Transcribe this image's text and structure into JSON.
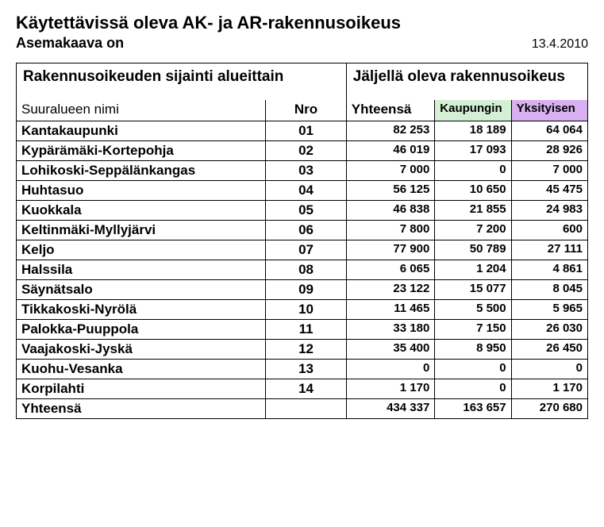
{
  "title": "Käytettävissä oleva AK- ja AR-rakennusoikeus",
  "subtitle": "Asemakaava on",
  "date": "13.4.2010",
  "headers": {
    "location": "Rakennusoikeuden sijainti alueittain",
    "remaining": "Jäljellä oleva rakennusoikeus",
    "area_name": "Suuralueen nimi",
    "nro": "Nro",
    "total": "Yhteensä",
    "city": "Kaupungin",
    "private": "Yksityisen"
  },
  "colors": {
    "city_bg": "#d4f0d4",
    "private_bg": "#d8b0f0"
  },
  "rows": [
    {
      "name": "Kantakaupunki",
      "nro": "01",
      "total": "82 253",
      "city": "18 189",
      "private": "64 064"
    },
    {
      "name": "Kypärämäki-Kortepohja",
      "nro": "02",
      "total": "46 019",
      "city": "17 093",
      "private": "28 926"
    },
    {
      "name": "Lohikoski-Seppälänkangas",
      "nro": "03",
      "total": "7 000",
      "city": "0",
      "private": "7 000"
    },
    {
      "name": "Huhtasuo",
      "nro": "04",
      "total": "56 125",
      "city": "10 650",
      "private": "45 475"
    },
    {
      "name": "Kuokkala",
      "nro": "05",
      "total": "46 838",
      "city": "21 855",
      "private": "24 983"
    },
    {
      "name": "Keltinmäki-Myllyjärvi",
      "nro": "06",
      "total": "7 800",
      "city": "7 200",
      "private": "600"
    },
    {
      "name": "Keljo",
      "nro": "07",
      "total": "77 900",
      "city": "50 789",
      "private": "27 111"
    },
    {
      "name": "Halssila",
      "nro": "08",
      "total": "6 065",
      "city": "1 204",
      "private": "4 861"
    },
    {
      "name": "Säynätsalo",
      "nro": "09",
      "total": "23 122",
      "city": "15 077",
      "private": "8 045"
    },
    {
      "name": "Tikkakoski-Nyrölä",
      "nro": "10",
      "total": "11 465",
      "city": "5 500",
      "private": "5 965"
    },
    {
      "name": "Palokka-Puuppola",
      "nro": "11",
      "total": "33 180",
      "city": "7 150",
      "private": "26 030"
    },
    {
      "name": "Vaajakoski-Jyskä",
      "nro": "12",
      "total": "35 400",
      "city": "8 950",
      "private": "26 450"
    },
    {
      "name": "Kuohu-Vesanka",
      "nro": "13",
      "total": "0",
      "city": "0",
      "private": "0"
    },
    {
      "name": "Korpilahti",
      "nro": "14",
      "total": "1 170",
      "city": "0",
      "private": "1 170"
    }
  ],
  "totals": {
    "name": "Yhteensä",
    "nro": "",
    "total": "434 337",
    "city": "163 657",
    "private": "270 680"
  }
}
